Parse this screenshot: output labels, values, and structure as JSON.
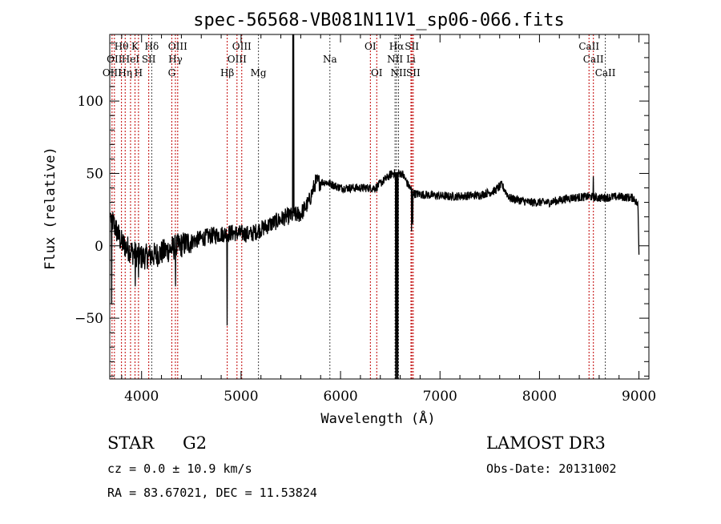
{
  "chart_data": {
    "type": "line",
    "title": "spec-56568-VB081N11V1_sp06-066.fits",
    "xlabel": "Wavelength (Å)",
    "ylabel": "Flux (relative)",
    "xlim": [
      3680,
      9100
    ],
    "ylim": [
      -92,
      146
    ],
    "x_ticks": [
      4000,
      5000,
      6000,
      7000,
      8000,
      9000
    ],
    "x_tick_labels": [
      "4000",
      "5000",
      "6000",
      "7000",
      "8000",
      "9000"
    ],
    "y_ticks": [
      100,
      50,
      0,
      -50
    ],
    "y_tick_labels": [
      "100",
      "50",
      "0",
      "−50"
    ],
    "grid": false,
    "continuum": [
      [
        3690,
        20
      ],
      [
        3720,
        15
      ],
      [
        3800,
        2
      ],
      [
        3900,
        -4
      ],
      [
        4000,
        -8
      ],
      [
        4150,
        -6
      ],
      [
        4300,
        -2
      ],
      [
        4500,
        3
      ],
      [
        4700,
        7
      ],
      [
        4900,
        9
      ],
      [
        5100,
        8
      ],
      [
        5300,
        15
      ],
      [
        5450,
        20
      ],
      [
        5600,
        22
      ],
      [
        5680,
        30
      ],
      [
        5750,
        44
      ],
      [
        5850,
        44
      ],
      [
        6000,
        40
      ],
      [
        6200,
        40
      ],
      [
        6350,
        40
      ],
      [
        6450,
        46
      ],
      [
        6520,
        50
      ],
      [
        6620,
        50
      ],
      [
        6680,
        42
      ],
      [
        6740,
        36
      ],
      [
        6900,
        35
      ],
      [
        7100,
        34
      ],
      [
        7400,
        35
      ],
      [
        7550,
        38
      ],
      [
        7620,
        42
      ],
      [
        7700,
        33
      ],
      [
        7900,
        30
      ],
      [
        8100,
        30
      ],
      [
        8300,
        33
      ],
      [
        8500,
        34
      ],
      [
        8600,
        33
      ],
      [
        8800,
        34
      ],
      [
        8950,
        33
      ],
      [
        8990,
        28
      ],
      [
        9000,
        -5
      ]
    ],
    "features": [
      [
        3700,
        -40
      ],
      [
        3935,
        -28
      ],
      [
        3970,
        -22
      ],
      [
        4340,
        -28
      ],
      [
        4861,
        -55
      ],
      [
        5520,
        146
      ],
      [
        5530,
        146
      ],
      [
        6555,
        -92
      ],
      [
        6563,
        -92
      ],
      [
        6575,
        -92
      ],
      [
        6715,
        10
      ],
      [
        6725,
        15
      ],
      [
        8540,
        48
      ]
    ],
    "lines": [
      {
        "label": "Hθ",
        "wl": 3798,
        "row": 1,
        "color": "#c00000"
      },
      {
        "label": "K",
        "wl": 3934,
        "row": 1,
        "color": "#c00000"
      },
      {
        "label": "Hδ",
        "wl": 4102,
        "row": 1,
        "color": "#444444"
      },
      {
        "label": "OIII",
        "wl": 4363,
        "row": 1,
        "color": "#c00000"
      },
      {
        "label": "OIII",
        "wl": 5007,
        "row": 1,
        "color": "#c00000"
      },
      {
        "label": "OI",
        "wl": 6300,
        "row": 1,
        "color": "#c00000"
      },
      {
        "label": "Hα",
        "wl": 6563,
        "row": 1,
        "color": "#444444"
      },
      {
        "label": "SII",
        "wl": 6717,
        "row": 1,
        "color": "#c00000"
      },
      {
        "label": "CaII",
        "wl": 8498,
        "row": 1,
        "color": "#c00000"
      },
      {
        "label": "OII",
        "wl": 3727,
        "row": 2,
        "color": "#c00000"
      },
      {
        "label": "HeI",
        "wl": 3889,
        "row": 2,
        "color": "#c00000"
      },
      {
        "label": "SII",
        "wl": 4072,
        "row": 2,
        "color": "#c00000"
      },
      {
        "label": "Hγ",
        "wl": 4340,
        "row": 2,
        "color": "#c00000"
      },
      {
        "label": "OIII",
        "wl": 4959,
        "row": 2,
        "color": "#c00000"
      },
      {
        "label": "Na",
        "wl": 5893,
        "row": 2,
        "color": "#444444"
      },
      {
        "label": "NII",
        "wl": 6548,
        "row": 2,
        "color": "#444444"
      },
      {
        "label": "Li",
        "wl": 6708,
        "row": 2,
        "color": "#c00000"
      },
      {
        "label": "CaII",
        "wl": 8542,
        "row": 2,
        "color": "#c00000"
      },
      {
        "label": "OIII",
        "wl": 3703,
        "row": 3,
        "color": "#c00000"
      },
      {
        "label": "Hη",
        "wl": 3835,
        "row": 3,
        "color": "#c00000"
      },
      {
        "label": "H",
        "wl": 3969,
        "row": 3,
        "color": "#c00000"
      },
      {
        "label": "G",
        "wl": 4304,
        "row": 3,
        "color": "#c00000"
      },
      {
        "label": "Hβ",
        "wl": 4861,
        "row": 3,
        "color": "#c00000"
      },
      {
        "label": "Mg",
        "wl": 5175,
        "row": 3,
        "color": "#444444"
      },
      {
        "label": "OI",
        "wl": 6364,
        "row": 3,
        "color": "#c00000"
      },
      {
        "label": "NII",
        "wl": 6583,
        "row": 3,
        "color": "#444444"
      },
      {
        "label": "SII",
        "wl": 6731,
        "row": 3,
        "color": "#c00000"
      },
      {
        "label": "CaII",
        "wl": 8662,
        "row": 3,
        "color": "#444444"
      }
    ]
  },
  "info": {
    "class": "STAR",
    "subclass": "G2",
    "survey": "LAMOST DR3",
    "cz": "cz = 0.0 ± 10.9 km/s",
    "obs_date": "Obs-Date: 20131002",
    "coords": "RA =  83.67021, DEC =  11.53824"
  }
}
